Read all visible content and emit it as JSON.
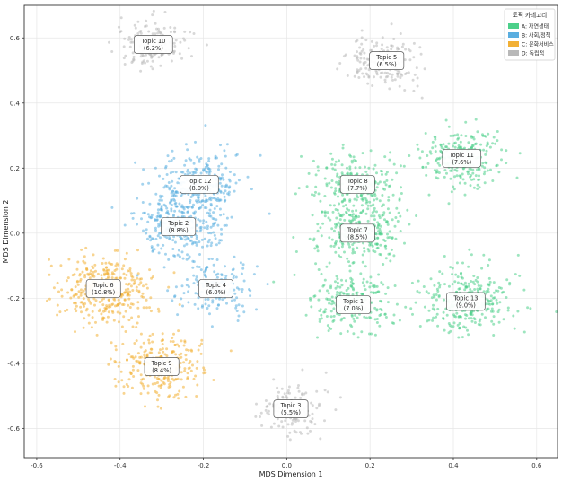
{
  "chart_data": {
    "type": "scatter",
    "title": "",
    "xlabel": "MDS Dimension 1",
    "ylabel": "MDS Dimension 2",
    "xlim": [
      -0.63,
      0.65
    ],
    "ylim": [
      -0.69,
      0.7
    ],
    "xticks": [
      -0.6,
      -0.4,
      -0.2,
      0.0,
      0.2,
      0.4,
      0.6
    ],
    "yticks": [
      -0.6,
      -0.4,
      -0.2,
      0.0,
      0.2,
      0.4,
      0.6
    ],
    "xtick_labels": [
      "-0.6",
      "-0.4",
      "-0.2",
      "0.0",
      "0.2",
      "0.4",
      "0.6"
    ],
    "ytick_labels": [
      "-0.6",
      "-0.4",
      "-0.2",
      "0.0",
      "0.2",
      "0.4",
      "0.6"
    ],
    "grid": true,
    "legend": {
      "title": "토픽 카테고리",
      "placement": "top-right",
      "entries": [
        {
          "label": "A: 자연생태",
          "color": "#4cd08a"
        },
        {
          "label": "B: 사회/정책",
          "color": "#5aaee0"
        },
        {
          "label": "C: 문화서비스",
          "color": "#f2b035"
        },
        {
          "label": "D: 독립적",
          "color": "#b8b8b8"
        }
      ]
    },
    "series": [
      {
        "topic": "Topic 1",
        "share": "(7.0%)",
        "category": "A",
        "center": [
          0.16,
          -0.22
        ],
        "spread": [
          0.048,
          0.048
        ],
        "n": 230
      },
      {
        "topic": "Topic 2",
        "share": "(8.8%)",
        "category": "B",
        "center": [
          -0.26,
          0.02
        ],
        "spread": [
          0.05,
          0.05
        ],
        "n": 290
      },
      {
        "topic": "Topic 3",
        "share": "(5.5%)",
        "category": "D",
        "center": [
          0.01,
          -0.54
        ],
        "spread": [
          0.038,
          0.038
        ],
        "n": 150
      },
      {
        "topic": "Topic 4",
        "share": "(6.0%)",
        "category": "B",
        "center": [
          -0.17,
          -0.17
        ],
        "spread": [
          0.04,
          0.04
        ],
        "n": 170
      },
      {
        "topic": "Topic 5",
        "share": "(6.5%)",
        "category": "D",
        "center": [
          0.24,
          0.53
        ],
        "spread": [
          0.042,
          0.04
        ],
        "n": 180
      },
      {
        "topic": "Topic 6",
        "share": "(10.8%)",
        "category": "C",
        "center": [
          -0.44,
          -0.17
        ],
        "spread": [
          0.055,
          0.055
        ],
        "n": 350
      },
      {
        "topic": "Topic 7",
        "share": "(8.5%)",
        "category": "A",
        "center": [
          0.17,
          0.0
        ],
        "spread": [
          0.05,
          0.05
        ],
        "n": 280
      },
      {
        "topic": "Topic 8",
        "share": "(7.7%)",
        "category": "A",
        "center": [
          0.17,
          0.15
        ],
        "spread": [
          0.05,
          0.048
        ],
        "n": 250
      },
      {
        "topic": "Topic 9",
        "share": "(8.4%)",
        "category": "C",
        "center": [
          -0.3,
          -0.41
        ],
        "spread": [
          0.05,
          0.048
        ],
        "n": 270
      },
      {
        "topic": "Topic 10",
        "share": "(6.2%)",
        "category": "D",
        "center": [
          -0.32,
          0.58
        ],
        "spread": [
          0.042,
          0.035
        ],
        "n": 170
      },
      {
        "topic": "Topic 11",
        "share": "(7.6%)",
        "category": "A",
        "center": [
          0.42,
          0.23
        ],
        "spread": [
          0.048,
          0.045
        ],
        "n": 240
      },
      {
        "topic": "Topic 12",
        "share": "(8.0%)",
        "category": "B",
        "center": [
          -0.21,
          0.15
        ],
        "spread": [
          0.05,
          0.048
        ],
        "n": 260
      },
      {
        "topic": "Topic 13",
        "share": "(9.0%)",
        "category": "A",
        "center": [
          0.43,
          -0.21
        ],
        "spread": [
          0.055,
          0.05
        ],
        "n": 300
      }
    ]
  }
}
